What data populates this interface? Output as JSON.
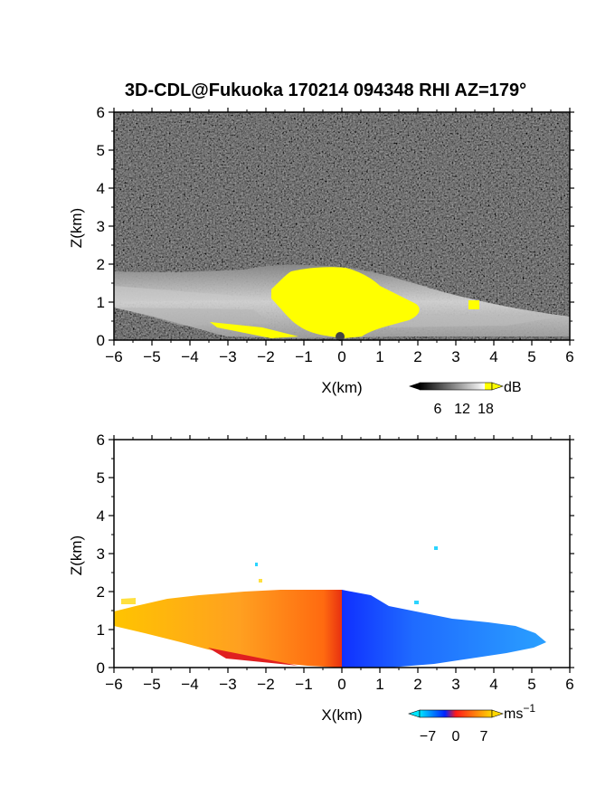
{
  "title": "3D-CDL@Fukuoka 170214 094348 RHI AZ=179°",
  "chart_data": [
    {
      "type": "heatmap",
      "variable": "backscatter",
      "xlabel": "X(km)",
      "ylabel": "Z(km)",
      "xlim": [
        -6,
        6
      ],
      "ylim": [
        0,
        6
      ],
      "xticks": [
        "-6",
        "-5",
        "-4",
        "-3",
        "-2",
        "-1",
        "0",
        "1",
        "2",
        "3",
        "4",
        "5",
        "6"
      ],
      "yticks": [
        "0",
        "1",
        "2",
        "3",
        "4",
        "5",
        "6"
      ],
      "colorbar": {
        "unit": "dB",
        "ticks": [
          "6",
          "12",
          "18"
        ],
        "range": [
          0,
          20
        ],
        "colors": [
          "#000000",
          "#ffffff",
          "#ffff00"
        ]
      },
      "features": [
        {
          "kind": "noise-background",
          "range_z_km": [
            0,
            6
          ]
        },
        {
          "kind": "bright-echo",
          "x_range_km": [
            -1,
            2.3
          ],
          "z_range_km": [
            0.2,
            1.9
          ],
          "value_db": 18
        },
        {
          "kind": "bright-patch",
          "x_km": 3.5,
          "z_km": 0.95
        }
      ]
    },
    {
      "type": "heatmap",
      "variable": "doppler velocity",
      "xlabel": "X(km)",
      "ylabel": "Z(km)",
      "xlim": [
        -6,
        6
      ],
      "ylim": [
        0,
        6
      ],
      "xticks": [
        "-6",
        "-5",
        "-4",
        "-3",
        "-2",
        "-1",
        "0",
        "1",
        "2",
        "3",
        "4",
        "5",
        "6"
      ],
      "yticks": [
        "0",
        "1",
        "2",
        "3",
        "4",
        "5",
        "6"
      ],
      "colorbar": {
        "unit": "ms",
        "unit_sup": "−1",
        "ticks": [
          "−7",
          "0",
          "7"
        ],
        "range": [
          -7,
          7
        ],
        "colors": [
          "#00e5ff",
          "#0022ff",
          "#ff1a1a",
          "#ffd700"
        ]
      },
      "features": [
        {
          "kind": "positive-velocity-region",
          "x_range_km": [
            -6,
            0
          ],
          "z_range_km": [
            0,
            2.0
          ]
        },
        {
          "kind": "negative-velocity-region",
          "x_range_km": [
            0,
            5.5
          ],
          "z_range_km": [
            0,
            2.0
          ]
        }
      ]
    }
  ]
}
